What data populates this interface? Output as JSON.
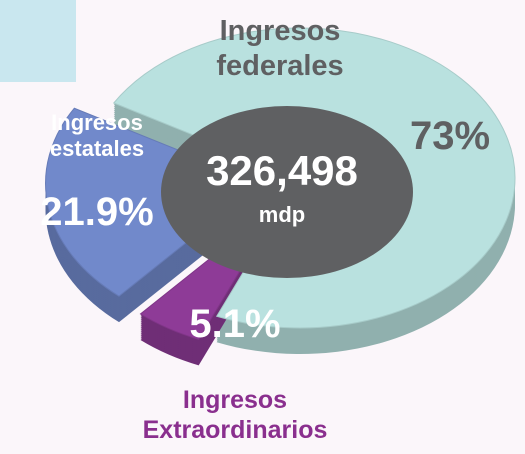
{
  "chart_data": {
    "type": "pie",
    "categories": [
      "Ingresos federales",
      "Ingresos Extraordinarios",
      "Ingresos estatales"
    ],
    "values": [
      73,
      5.1,
      21.9
    ],
    "value_labels": [
      "73%",
      "5.1%",
      "21.9%"
    ],
    "colors": [
      "#b9e1df",
      "#8e3b97",
      "#7189cb"
    ],
    "center_label": "326,498",
    "center_unit": "mdp"
  }
}
